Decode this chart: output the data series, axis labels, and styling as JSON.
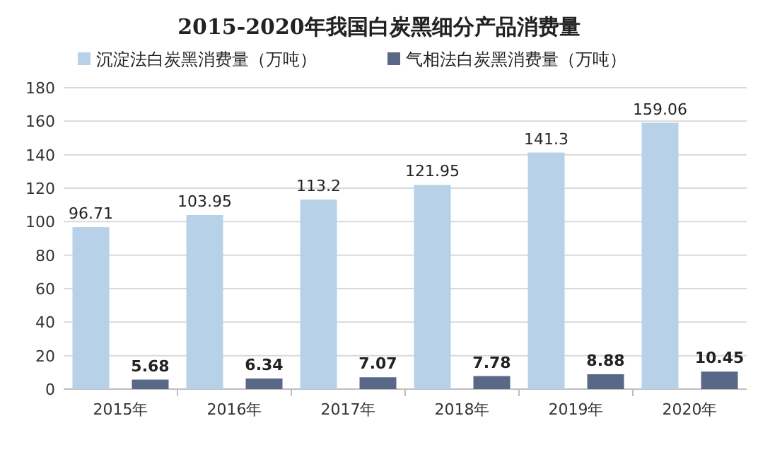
{
  "chart_data": {
    "type": "bar",
    "title": "2015-2020年我国白炭黑细分产品消费量",
    "categories": [
      "2015年",
      "2016年",
      "2017年",
      "2018年",
      "2019年",
      "2020年"
    ],
    "series": [
      {
        "name": "沉淀法白炭黑消费量（万吨）",
        "color": "#b6d1e8",
        "values": [
          96.71,
          103.95,
          113.2,
          121.95,
          141.3,
          159.06
        ]
      },
      {
        "name": "气相法白炭黑消费量（万吨）",
        "color": "#5a6888",
        "values": [
          5.68,
          6.34,
          7.07,
          7.78,
          8.88,
          10.45
        ]
      }
    ],
    "ylim": [
      0,
      180
    ],
    "yticks": [
      0,
      20,
      40,
      60,
      80,
      100,
      120,
      140,
      160,
      180
    ],
    "grid": "y",
    "legend": "top",
    "data_labels": true
  }
}
